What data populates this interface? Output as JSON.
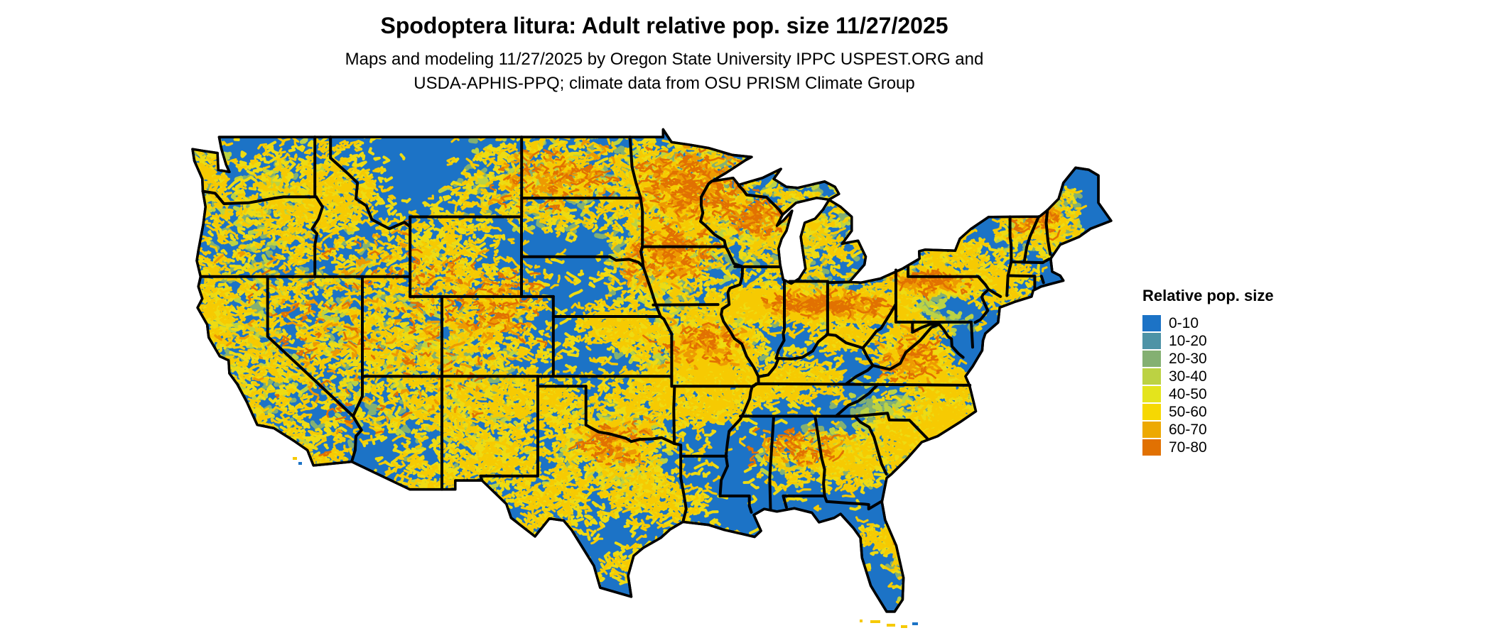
{
  "header": {
    "title": "Spodoptera litura: Adult relative pop. size 11/27/2025",
    "subtitle_line1": "Maps and modeling 11/27/2025 by Oregon State University IPPC USPEST.ORG and",
    "subtitle_line2": "USDA-APHIS-PPQ; climate data from OSU PRISM Climate Group"
  },
  "map": {
    "region_label": "Contiguous United States choropleth raster",
    "land_color": "#1c73c6",
    "state_border_color": "#000000",
    "background_color": "#ffffff",
    "speckle_colors": {
      "green_dark": "#84b072",
      "green_light": "#bcd243",
      "yellow": "#eedb12",
      "gold": "#f6ca02",
      "orange": "#ed9a02",
      "deep_orange": "#e17102"
    }
  },
  "legend": {
    "title": "Relative pop. size",
    "items": [
      {
        "label": "0-10",
        "color": "#1c73c6"
      },
      {
        "label": "10-20",
        "color": "#4e93a6"
      },
      {
        "label": "20-30",
        "color": "#84b072"
      },
      {
        "label": "30-40",
        "color": "#bcd243"
      },
      {
        "label": "40-50",
        "color": "#e4e41c"
      },
      {
        "label": "50-60",
        "color": "#f6d802"
      },
      {
        "label": "60-70",
        "color": "#eda902"
      },
      {
        "label": "70-80",
        "color": "#e17102"
      }
    ]
  }
}
